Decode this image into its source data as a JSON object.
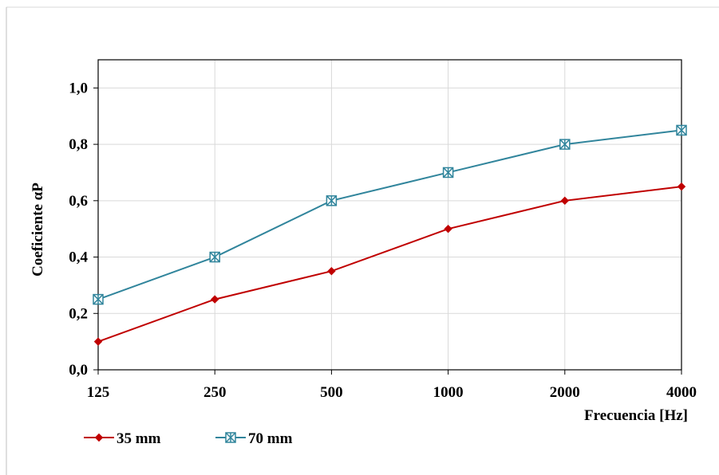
{
  "chart_data": {
    "type": "line",
    "title": "",
    "xlabel": "Frecuencia [Hz]",
    "ylabel": "Coeficiente αP",
    "categories": [
      "125",
      "250",
      "500",
      "1000",
      "2000",
      "4000"
    ],
    "ylim": [
      0,
      1.1
    ],
    "yticks": [
      0.0,
      0.2,
      0.4,
      0.6,
      0.8,
      1.0
    ],
    "ytick_labels": [
      "0,0",
      "0,2",
      "0,4",
      "0,6",
      "0,8",
      "1,0"
    ],
    "grid": true,
    "legend_position": "bottom-left",
    "series": [
      {
        "name": "35 mm",
        "values": [
          0.1,
          0.25,
          0.35,
          0.5,
          0.6,
          0.65
        ],
        "color": "#c00000",
        "marker": "diamond"
      },
      {
        "name": "70 mm",
        "values": [
          0.25,
          0.4,
          0.6,
          0.7,
          0.8,
          0.85
        ],
        "color": "#31859c",
        "marker": "asterisk-square"
      }
    ]
  }
}
